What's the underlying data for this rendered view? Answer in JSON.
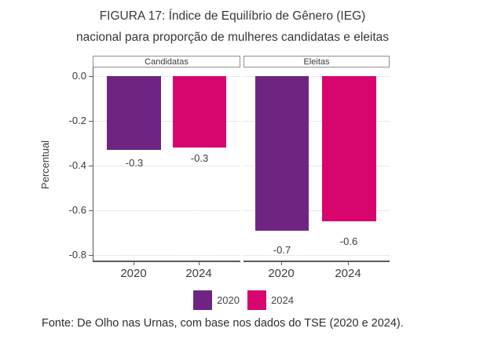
{
  "title": {
    "line1": "FIGURA 17: Índice de Equilíbrio de Gênero (IEG)",
    "line2": "nacional para proporção de mulheres candidatas e eleitas"
  },
  "source": "Fonte: De Olho nas Urnas, com base nos dados do TSE (2020 e 2024).",
  "colors": {
    "purple_2020": "#6f2484",
    "pink_2024": "#d9056f",
    "axis": "#5a5a5a",
    "grid": "#d4d4d4"
  },
  "chart_data": {
    "type": "bar",
    "title": "FIGURA 17: Índice de Equilíbrio de Gênero (IEG) nacional para proporção de mulheres candidatas e eleitas",
    "ylabel": "Percentual",
    "xlabel": "",
    "ylim": [
      -0.8,
      0.0
    ],
    "ytick_labels": [
      "0.0",
      "-0.2",
      "-0.4",
      "-0.6",
      "-0.8"
    ],
    "grid": "dotted-horizontal",
    "legend_position": "bottom",
    "facets": [
      {
        "label": "Candidatas",
        "categories": [
          "2020",
          "2024"
        ],
        "series": [
          {
            "name": "2020",
            "value": -0.33,
            "label": "-0.3",
            "color": "#6f2484"
          },
          {
            "name": "2024",
            "value": -0.32,
            "label": "-0.3",
            "color": "#d9056f"
          }
        ]
      },
      {
        "label": "Eleitas",
        "categories": [
          "2020",
          "2024"
        ],
        "series": [
          {
            "name": "2020",
            "value": -0.69,
            "label": "-0.7",
            "color": "#6f2484"
          },
          {
            "name": "2024",
            "value": -0.65,
            "label": "-0.6",
            "color": "#d9056f"
          }
        ]
      }
    ],
    "legend": [
      {
        "label": "2020",
        "color": "#6f2484"
      },
      {
        "label": "2024",
        "color": "#d9056f"
      }
    ]
  }
}
